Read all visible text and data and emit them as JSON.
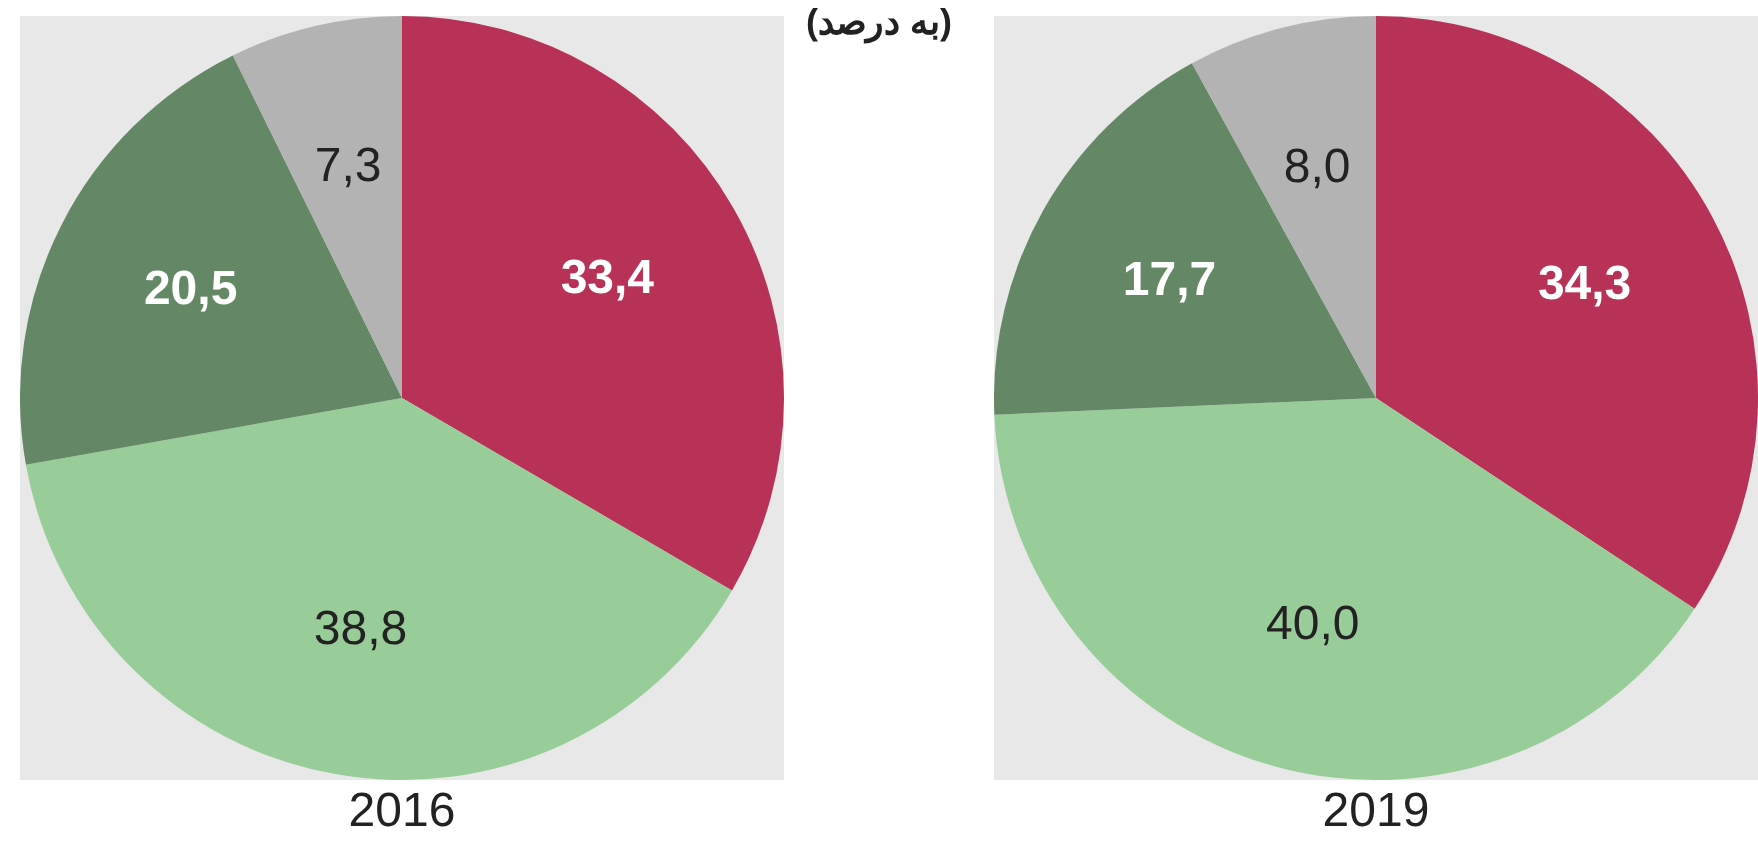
{
  "chart_data": [
    {
      "type": "pie",
      "title": "2016",
      "annotations": [
        "(به درصد)"
      ],
      "categories": [
        null,
        null,
        null,
        null
      ],
      "values": [
        33.4,
        38.8,
        20.5,
        7.3
      ],
      "colors": [
        "#b83258",
        "#98cc98",
        "#648866",
        "#b3b3b3"
      ],
      "value_labels": [
        "33,4",
        "38,8",
        "20,5",
        "7,3"
      ],
      "legend": false
    },
    {
      "type": "pie",
      "title": "2019",
      "categories": [
        null,
        null,
        null,
        null
      ],
      "values": [
        34.3,
        40.0,
        17.7,
        8.0
      ],
      "colors": [
        "#b83258",
        "#98cc98",
        "#648866",
        "#b3b3b3"
      ],
      "value_labels": [
        "34,3",
        "40,0",
        "17,7",
        "8,0"
      ],
      "legend": false
    }
  ]
}
